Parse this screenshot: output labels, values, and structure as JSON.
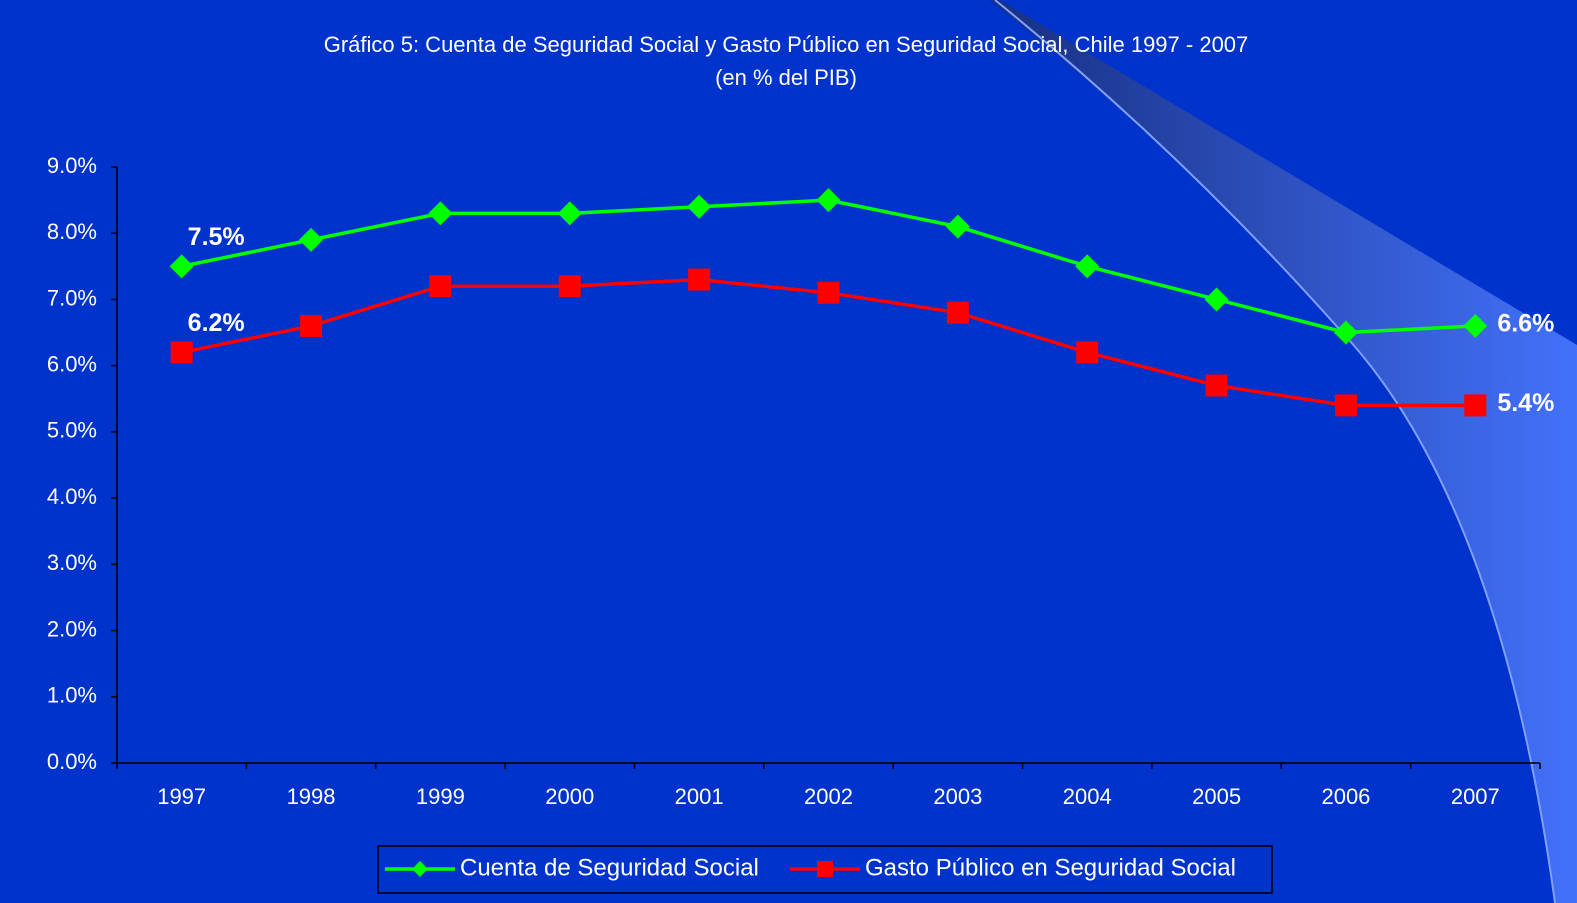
{
  "chart_data": {
    "type": "line",
    "title": "Gráfico 5: Cuenta de Seguridad Social y Gasto Público en Seguridad Social, Chile 1997 - 2007",
    "subtitle": "(en % del PIB)",
    "categories": [
      "1997",
      "1998",
      "1999",
      "2000",
      "2001",
      "2002",
      "2003",
      "2004",
      "2005",
      "2006",
      "2007"
    ],
    "series": [
      {
        "name": "Cuenta de Seguridad Social",
        "color": "#00ff00",
        "marker": "diamond",
        "values": [
          7.5,
          7.9,
          8.3,
          8.3,
          8.4,
          8.5,
          8.1,
          7.5,
          7.0,
          6.5,
          6.6
        ],
        "value_labels": [
          "7.5%",
          null,
          null,
          null,
          null,
          null,
          null,
          null,
          null,
          null,
          "6.6%"
        ]
      },
      {
        "name": "Gasto Público en Seguridad Social",
        "color": "#ff0000",
        "marker": "square",
        "values": [
          6.2,
          6.6,
          7.2,
          7.2,
          7.3,
          7.1,
          6.8,
          6.2,
          5.7,
          5.4,
          5.4
        ],
        "value_labels": [
          "6.2%",
          null,
          null,
          null,
          null,
          null,
          null,
          null,
          null,
          null,
          "5.4%"
        ]
      }
    ],
    "ylim": [
      0,
      9
    ],
    "yticks": [
      {
        "value": 0,
        "label": "0.0%"
      },
      {
        "value": 1,
        "label": "1.0%"
      },
      {
        "value": 2,
        "label": "2.0%"
      },
      {
        "value": 3,
        "label": "3.0%"
      },
      {
        "value": 4,
        "label": "4.0%"
      },
      {
        "value": 5,
        "label": "5.0%"
      },
      {
        "value": 6,
        "label": "6.0%"
      },
      {
        "value": 7,
        "label": "7.0%"
      },
      {
        "value": 8,
        "label": "8.0%"
      },
      {
        "value": 9,
        "label": "9.0%"
      }
    ],
    "grid": false,
    "legend": "bottom"
  }
}
